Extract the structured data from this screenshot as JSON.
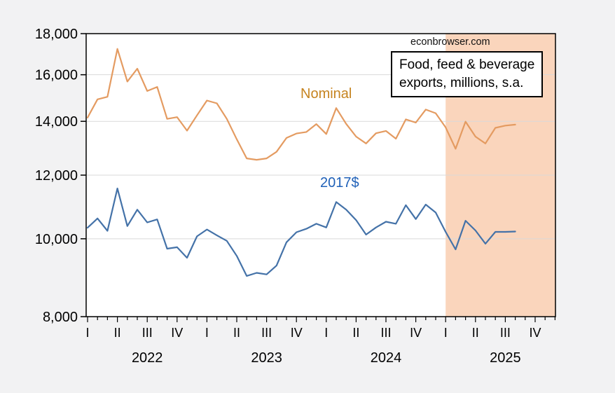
{
  "watermark": "econbrowser.com",
  "legend_box": {
    "line1": "Food, feed & beverage",
    "line2": "exports, millions, s.a."
  },
  "series_labels": {
    "nominal": "Nominal",
    "real": "2017$"
  },
  "colors": {
    "background": "#f2f2f3",
    "plot_background": "#ffffff",
    "shading": "#fad5bc",
    "gridline": "#d9d9d9",
    "axis": "#000000",
    "nominal_line": "#e49b61",
    "nominal_label": "#c68420",
    "real_line": "#4472a8",
    "real_label": "#2061b8",
    "tick_label": "#000000"
  },
  "chart_data": {
    "type": "line",
    "title": "Food, feed & beverage exports, millions, s.a.",
    "frequency": "monthly",
    "start_month": "2022-01",
    "end_month": "2025-08",
    "x_axis_span_months": 48,
    "y_scale": "log",
    "ylim": [
      8000,
      18000
    ],
    "y_ticks": [
      8000,
      10000,
      12000,
      14000,
      16000,
      18000
    ],
    "y_gridlines": [
      10000,
      12000,
      14000,
      16000
    ],
    "quarter_tick_labels": [
      "I",
      "II",
      "III",
      "IV"
    ],
    "year_labels": [
      "2022",
      "2023",
      "2024",
      "2025"
    ],
    "shaded_region": {
      "start_month": "2025-01",
      "start_index": 36,
      "end": "axis-right-edge"
    },
    "series": [
      {
        "name": "Nominal",
        "values": [
          14150,
          14910,
          15020,
          17230,
          15690,
          16280,
          15270,
          15450,
          14100,
          14170,
          13630,
          14240,
          14860,
          14740,
          14100,
          13300,
          12590,
          12540,
          12590,
          12830,
          13350,
          13520,
          13580,
          13890,
          13500,
          14540,
          13900,
          13400,
          13140,
          13530,
          13620,
          13320,
          14080,
          13950,
          14480,
          14330,
          13760,
          12940,
          13990,
          13400,
          13140,
          13740,
          13830,
          13870
        ]
      },
      {
        "name": "2017$",
        "values": [
          10320,
          10600,
          10230,
          11550,
          10370,
          10870,
          10480,
          10570,
          9720,
          9760,
          9470,
          10070,
          10270,
          10100,
          9940,
          9520,
          8990,
          9070,
          9030,
          9260,
          9900,
          10190,
          10290,
          10440,
          10330,
          11110,
          10870,
          10550,
          10120,
          10330,
          10500,
          10440,
          11010,
          10580,
          11030,
          10780,
          10200,
          9700,
          10530,
          10240,
          9860,
          10200,
          10200,
          10210
        ]
      }
    ]
  }
}
